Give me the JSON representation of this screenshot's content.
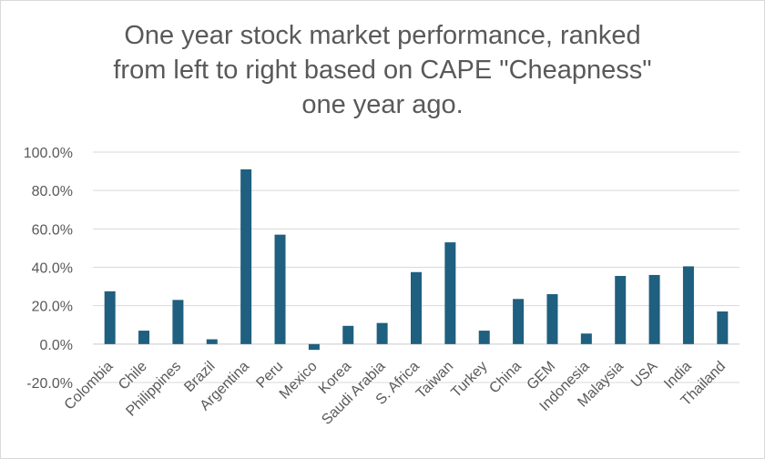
{
  "chart_data": {
    "type": "bar",
    "title_lines": [
      "One year stock market performance, ranked",
      "from left to right based on CAPE \"Cheapness\"",
      "one year ago."
    ],
    "categories": [
      "Colombia",
      "Chile",
      "Philippines",
      "Brazil",
      "Argentina",
      "Peru",
      "Mexico",
      "Korea",
      "Saudi Arabia",
      "S. Africa",
      "Taiwan",
      "Turkey",
      "China",
      "GEM",
      "Indonesia",
      "Malaysia",
      "USA",
      "India",
      "Thailand"
    ],
    "values": [
      27.5,
      7.0,
      23.0,
      2.5,
      91.0,
      57.0,
      -3.0,
      9.5,
      11.0,
      37.5,
      53.0,
      7.0,
      23.5,
      26.0,
      5.5,
      35.5,
      36.0,
      40.5,
      17.0
    ],
    "ylim": [
      -20,
      100
    ],
    "yticks": [
      -20,
      0,
      20,
      40,
      60,
      80,
      100
    ],
    "ytick_labels": [
      "-20.0%",
      "0.0%",
      "20.0%",
      "40.0%",
      "60.0%",
      "80.0%",
      "100.0%"
    ],
    "bar_color": "#1f5f7f",
    "grid_color": "#d9d9d9",
    "grid": true
  }
}
